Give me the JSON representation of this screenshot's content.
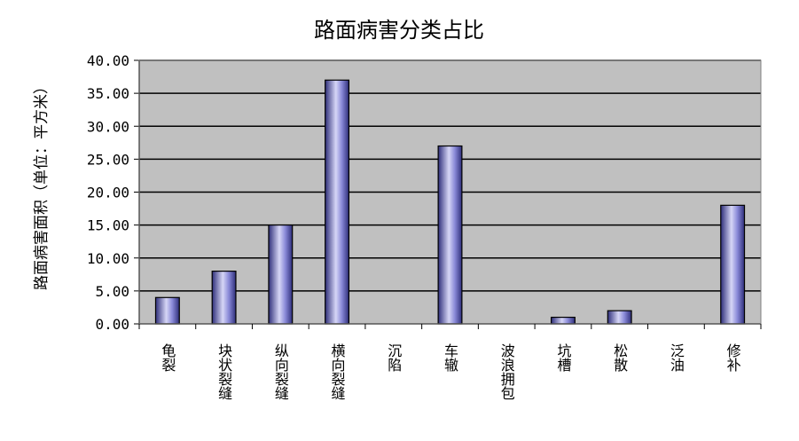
{
  "chart_data": {
    "type": "bar",
    "title": "路面病害分类占比",
    "xlabel": "",
    "ylabel": "路面病害面积（单位：平方米）",
    "categories": [
      "龟裂",
      "块状裂缝",
      "纵向裂缝",
      "横向裂缝",
      "沉陷",
      "车辙",
      "波浪拥包",
      "坑槽",
      "松散",
      "泛油",
      "修补"
    ],
    "values": [
      4,
      8,
      15,
      37,
      0,
      27,
      0,
      1,
      2,
      0,
      18
    ],
    "ylim": [
      0,
      40
    ],
    "yticks": [
      "0.00",
      "5.00",
      "10.00",
      "15.00",
      "20.00",
      "25.00",
      "30.00",
      "35.00",
      "40.00"
    ],
    "grid": true,
    "legend": "none",
    "colors": {
      "plot_background": "#c0c0c0",
      "bar_edge": "#000000",
      "bar_dark": "#2e2e7a",
      "bar_mid": "#8a8ad8",
      "bar_light": "#d6d6f6",
      "gridline": "#000000"
    }
  }
}
